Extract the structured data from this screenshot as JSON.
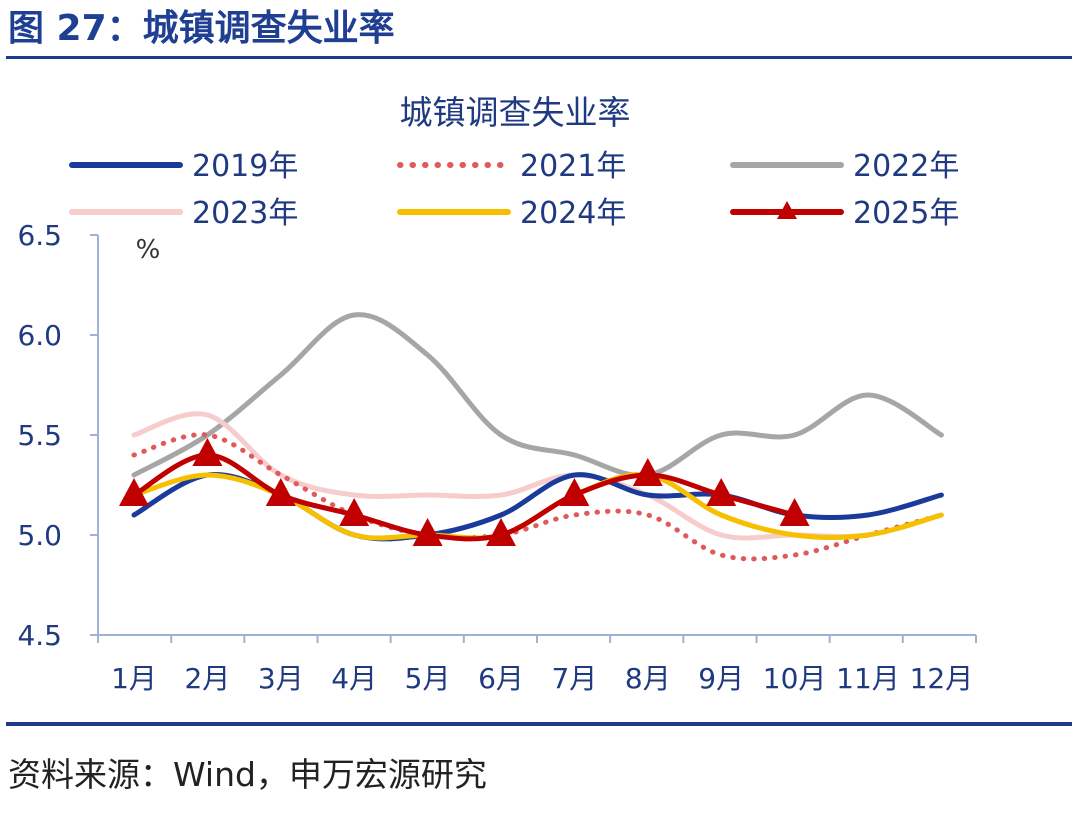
{
  "figure": {
    "title": "图 27：城镇调查失业率",
    "source": "资料来源：Wind，申万宏源研究"
  },
  "chart_data": {
    "type": "line",
    "title": "城镇调查失业率",
    "ylabel": "%",
    "xlabel": "",
    "categories": [
      "1月",
      "2月",
      "3月",
      "4月",
      "5月",
      "6月",
      "7月",
      "8月",
      "9月",
      "10月",
      "11月",
      "12月"
    ],
    "ylim": [
      4.5,
      6.5
    ],
    "yticks": [
      "4.5",
      "5.0",
      "5.5",
      "6.0",
      "6.5"
    ],
    "ytick_values": [
      4.5,
      5.0,
      5.5,
      6.0,
      6.5
    ],
    "legend_position": "top",
    "series": [
      {
        "name": "2019年",
        "color": "#1a3b9c",
        "style": "solid",
        "values": [
          5.1,
          5.3,
          5.2,
          5.0,
          5.0,
          5.1,
          5.3,
          5.2,
          5.2,
          5.1,
          5.1,
          5.2
        ]
      },
      {
        "name": "2021年",
        "color": "#e05a5a",
        "style": "dotted",
        "values": [
          5.4,
          5.5,
          5.3,
          5.1,
          5.0,
          5.0,
          5.1,
          5.1,
          4.9,
          4.9,
          5.0,
          5.1
        ]
      },
      {
        "name": "2022年",
        "color": "#a6a6a6",
        "style": "solid",
        "values": [
          5.3,
          5.5,
          5.8,
          6.1,
          5.9,
          5.5,
          5.4,
          5.3,
          5.5,
          5.5,
          5.7,
          5.5
        ]
      },
      {
        "name": "2023年",
        "color": "#f6cccc",
        "style": "solid",
        "values": [
          5.5,
          5.6,
          5.3,
          5.2,
          5.2,
          5.2,
          5.3,
          5.2,
          5.0,
          5.0,
          5.0,
          5.1
        ]
      },
      {
        "name": "2024年",
        "color": "#f6c000",
        "style": "solid",
        "values": [
          5.2,
          5.3,
          5.2,
          5.0,
          5.0,
          5.0,
          5.2,
          5.3,
          5.1,
          5.0,
          5.0,
          5.1
        ]
      },
      {
        "name": "2025年",
        "color": "#c00000",
        "style": "marker",
        "values": [
          5.2,
          5.4,
          5.2,
          5.1,
          5.0,
          5.0,
          5.2,
          5.3,
          5.2,
          5.1,
          null,
          null
        ]
      }
    ]
  }
}
